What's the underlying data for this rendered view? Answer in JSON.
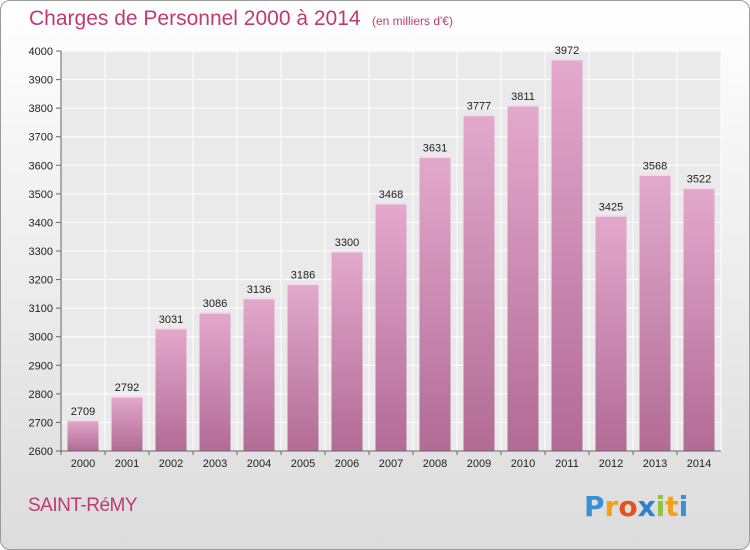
{
  "header": {
    "title": "Charges de Personnel 2000 à 2014",
    "subtitle": "(en milliers d'€)"
  },
  "footer": {
    "commune": "SAINT-RéMY",
    "logo_letters": [
      "P",
      "r",
      "o",
      "x",
      "i",
      "t",
      "i"
    ],
    "logo_colors": [
      "#3a8fd6",
      "#f0a21a",
      "#e8501e",
      "#2f7fcf",
      "#8cc63f",
      "#f0a21a",
      "#3a8fd6"
    ]
  },
  "chart_data": {
    "type": "bar",
    "categories": [
      "2000",
      "2001",
      "2002",
      "2003",
      "2004",
      "2005",
      "2006",
      "2007",
      "2008",
      "2009",
      "2010",
      "2011",
      "2012",
      "2013",
      "2014"
    ],
    "values": [
      2709,
      2792,
      3031,
      3086,
      3136,
      3186,
      3300,
      3468,
      3631,
      3777,
      3811,
      3972,
      3425,
      3568,
      3522
    ],
    "ylim": [
      2600,
      4000
    ],
    "yticks": [
      2600,
      2700,
      2800,
      2900,
      3000,
      3100,
      3200,
      3300,
      3400,
      3500,
      3600,
      3700,
      3800,
      3900,
      4000
    ],
    "grid": true,
    "bar_color_top": "#e3a9cd",
    "bar_color_bottom": "#b26b95"
  }
}
